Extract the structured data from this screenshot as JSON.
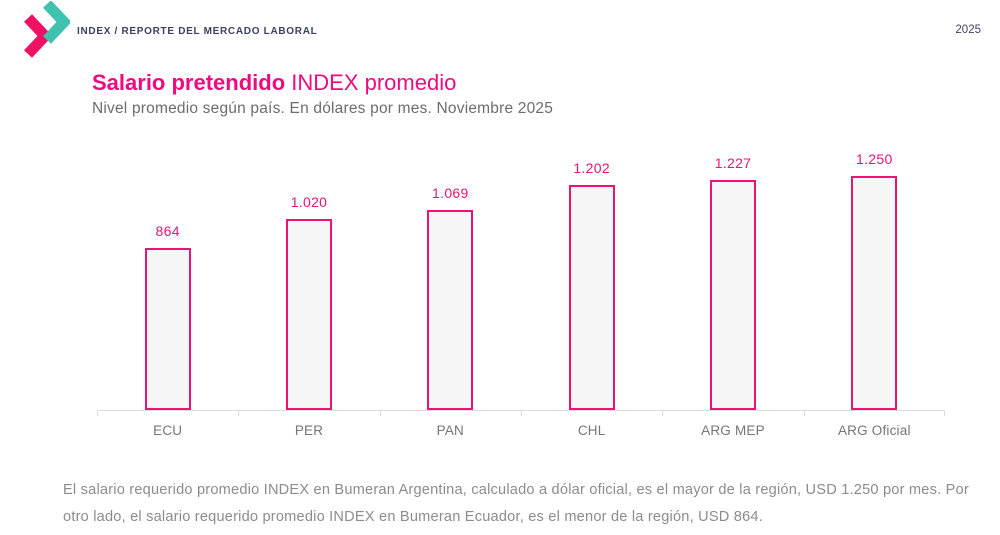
{
  "header": {
    "brand": "INDEX / REPORTE DEL MERCADO LABORAL",
    "year": "2025"
  },
  "title": {
    "bold": "Salario pretendido",
    "regular": " INDEX promedio"
  },
  "subtitle": "Nivel promedio según país. En dólares por mes. Noviembre 2025",
  "chart_data": {
    "type": "bar",
    "title": "Salario pretendido INDEX promedio",
    "subtitle": "Nivel promedio según país. En dólares por mes. Noviembre 2025",
    "categories": [
      "ECU",
      "PER",
      "PAN",
      "CHL",
      "ARG MEP",
      "ARG Oficial"
    ],
    "values": [
      864,
      1020,
      1069,
      1202,
      1227,
      1250
    ],
    "value_labels": [
      "864",
      "1.020",
      "1.069",
      "1.202",
      "1.227",
      "1.250"
    ],
    "unit": "USD por mes",
    "ylim": [
      0,
      1250
    ],
    "grid": false,
    "legend": "none"
  },
  "footer": {
    "text": "El salario requerido promedio INDEX en Bumeran Argentina, calculado a dólar oficial, es el mayor de la región, USD 1.250 por mes. Por otro lado, el salario requerido promedio INDEX en Bumeran Ecuador, es el menor de la región, USD 864."
  },
  "colors": {
    "accent": "#ed1274",
    "title_pink": "#ed0b80",
    "bar_fill": "#f6f6f6",
    "logo_teal": "#3fc3ae",
    "logo_pink": "#ee1164",
    "navy": "#3b4160",
    "axis_gray": "#dcdcdc",
    "text_gray": "#8b8b93"
  }
}
